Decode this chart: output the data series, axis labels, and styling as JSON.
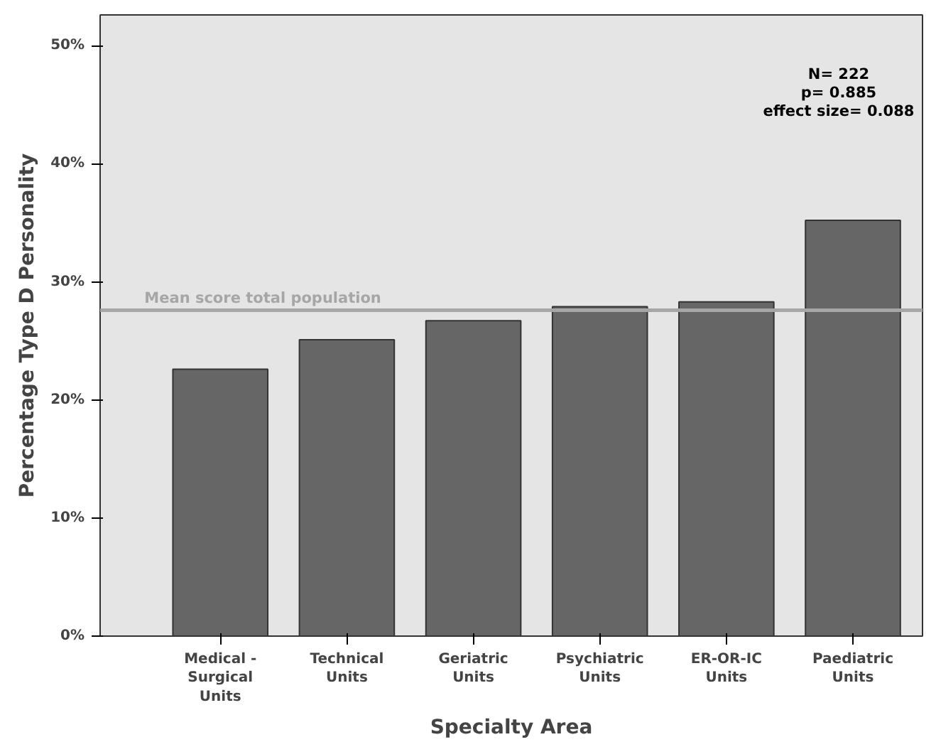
{
  "chart_data": {
    "type": "bar",
    "xlabel": "Specialty Area",
    "ylabel": "Percentage Type D Personality",
    "categories": [
      "Medical -\nSurgical\nUnits",
      "Technical\nUnits",
      "Geriatric\nUnits",
      "Psychiatric\nUnits",
      "ER-OR-IC\nUnits",
      "Paediatric\nUnits"
    ],
    "values": [
      22.6,
      25.1,
      26.7,
      27.9,
      28.3,
      35.2
    ],
    "color": "#666666",
    "ylim": [
      0,
      52.6
    ],
    "yticks": [
      {
        "value": 0,
        "label": "0%"
      },
      {
        "value": 10,
        "label": "10%"
      },
      {
        "value": 20,
        "label": "20%"
      },
      {
        "value": 30,
        "label": "30%"
      },
      {
        "value": 40,
        "label": "40%"
      },
      {
        "value": 50,
        "label": "50%"
      }
    ],
    "ref_lines": [
      {
        "axis": "y",
        "value": 27.6,
        "label": "Mean score total population",
        "color": "#a6a6a6"
      }
    ],
    "annotations": [
      "N= 222",
      "p= 0.885",
      "effect size= 0.088"
    ],
    "grid": false
  }
}
